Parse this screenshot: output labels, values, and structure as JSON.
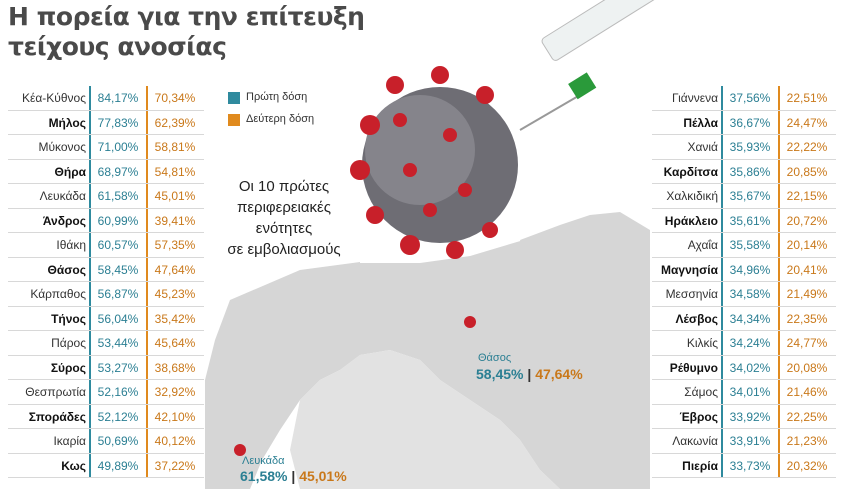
{
  "header": {
    "title_lines": [
      "Η πορεία για την επίτευξη",
      "τείχους ανοσίας"
    ]
  },
  "legend": [
    {
      "label": "Πρώτη δόση",
      "color": "#2f8a9e"
    },
    {
      "label": "Δεύτερη δόση",
      "color": "#e08a1e"
    }
  ],
  "center_text": [
    "Οι 10 πρώτες",
    "περιφερειακές",
    "ενότητες",
    "σε εμβολιασμούς"
  ],
  "left_table": {
    "rows": [
      [
        "Κέα-Κύθνος",
        "84,17%",
        "70,34%"
      ],
      [
        "Μήλος",
        "77,83%",
        "62,39%"
      ],
      [
        "Μύκονος",
        "71,00%",
        "58,81%"
      ],
      [
        "Θήρα",
        "68,97%",
        "54,81%"
      ],
      [
        "Λευκάδα",
        "61,58%",
        "45,01%"
      ],
      [
        "Άνδρος",
        "60,99%",
        "39,41%"
      ],
      [
        "Ιθάκη",
        "60,57%",
        "57,35%"
      ],
      [
        "Θάσος",
        "58,45%",
        "47,64%"
      ],
      [
        "Κάρπαθος",
        "56,87%",
        "45,23%"
      ],
      [
        "Τήνος",
        "56,04%",
        "35,42%"
      ],
      [
        "Πάρος",
        "53,44%",
        "45,64%"
      ],
      [
        "Σύρος",
        "53,27%",
        "38,68%"
      ],
      [
        "Θεσπρωτία",
        "52,16%",
        "32,92%"
      ],
      [
        "Σποράδες",
        "52,12%",
        "42,10%"
      ],
      [
        "Ικαρία",
        "50,69%",
        "40,12%"
      ],
      [
        "Κως",
        "49,89%",
        "37,22%"
      ]
    ]
  },
  "right_table": {
    "rows": [
      [
        "Γιάννενα",
        "37,56%",
        "22,51%"
      ],
      [
        "Πέλλα",
        "36,67%",
        "24,47%"
      ],
      [
        "Χανιά",
        "35,93%",
        "22,22%"
      ],
      [
        "Καρδίτσα",
        "35,86%",
        "20,85%"
      ],
      [
        "Χαλκιδική",
        "35,67%",
        "22,15%"
      ],
      [
        "Ηράκλειο",
        "35,61%",
        "20,72%"
      ],
      [
        "Αχαΐα",
        "35,58%",
        "20,14%"
      ],
      [
        "Μαγνησία",
        "34,96%",
        "20,41%"
      ],
      [
        "Μεσσηνία",
        "34,58%",
        "21,49%"
      ],
      [
        "Λέσβος",
        "34,34%",
        "22,35%"
      ],
      [
        "Κιλκίς",
        "34,24%",
        "24,77%"
      ],
      [
        "Ρέθυμνο",
        "34,02%",
        "20,08%"
      ],
      [
        "Σάμος",
        "34,01%",
        "21,46%"
      ],
      [
        "Έβρος",
        "33,92%",
        "22,25%"
      ],
      [
        "Λακωνία",
        "33,91%",
        "21,23%"
      ],
      [
        "Πιερία",
        "33,73%",
        "20,32%"
      ]
    ]
  },
  "map_labels": [
    {
      "name": "Θάσος",
      "first": "58,45%",
      "separator": "|",
      "second": "47,64%"
    },
    {
      "name": "Λευκάδα",
      "first": "61,58%",
      "separator": "|",
      "second": "45,01%"
    }
  ]
}
